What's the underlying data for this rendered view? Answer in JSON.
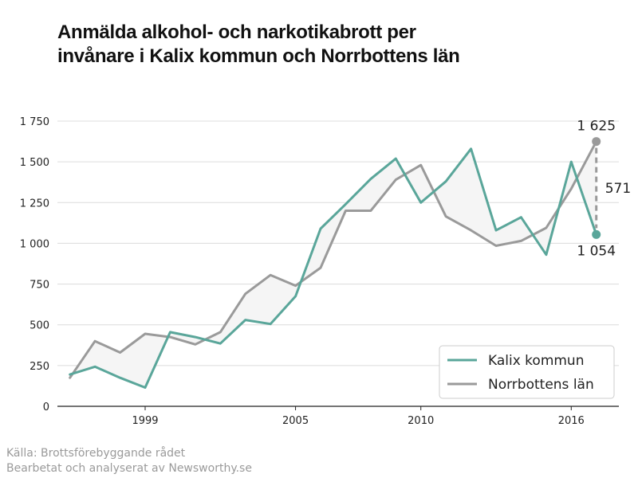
{
  "title_line1": "Anmälda alkohol- och narkotikabrott per",
  "title_line2": "invånare i Kalix kommun och Norrbottens län",
  "source_line1": "Källa: Brottsförebyggande rådet",
  "source_line2": "Bearbetat och analyserat av Newsworthy.se",
  "colors": {
    "kalix": "#5aa69a",
    "norrbotten": "#9a9a9a",
    "gap_fill": "#f5f5f5",
    "grid": "#dcdcdc"
  },
  "chart_data": {
    "type": "line",
    "title": "Anmälda alkohol- och narkotikabrott per invånare i Kalix kommun och Norrbottens län",
    "xlabel": "",
    "ylabel": "",
    "x": [
      1996,
      1997,
      1998,
      1999,
      2000,
      2001,
      2002,
      2003,
      2004,
      2005,
      2006,
      2007,
      2008,
      2009,
      2010,
      2011,
      2012,
      2013,
      2014,
      2015,
      2016,
      2017
    ],
    "x_ticks": [
      1999,
      2005,
      2010,
      2016
    ],
    "x_tick_labels": [
      "1999",
      "2005",
      "2010",
      "2016"
    ],
    "xlim": [
      1995.5,
      2017.9
    ],
    "ylim": [
      0,
      1750
    ],
    "y_ticks": [
      0,
      250,
      500,
      750,
      1000,
      1250,
      1500,
      1750
    ],
    "y_tick_labels": [
      "0",
      "250",
      "500",
      "750",
      "1 000",
      "1 250",
      "1 500",
      "1 750"
    ],
    "grid": true,
    "legend_position": "bottom-right",
    "series": [
      {
        "name": "Kalix kommun",
        "color": "#5aa69a",
        "values": [
          195,
          243,
          175,
          115,
          455,
          425,
          385,
          530,
          505,
          675,
          1090,
          1240,
          1395,
          1520,
          1250,
          1380,
          1580,
          1080,
          1160,
          930,
          1500,
          1054
        ]
      },
      {
        "name": "Norrbottens län",
        "color": "#9a9a9a",
        "values": [
          175,
          400,
          330,
          445,
          425,
          380,
          455,
          690,
          805,
          740,
          850,
          1200,
          1200,
          1390,
          1480,
          1165,
          1080,
          985,
          1015,
          1095,
          1335,
          1625
        ]
      }
    ],
    "annotations": {
      "norrbotten_last": "1 625",
      "kalix_last": "1 054",
      "difference": "571"
    }
  }
}
